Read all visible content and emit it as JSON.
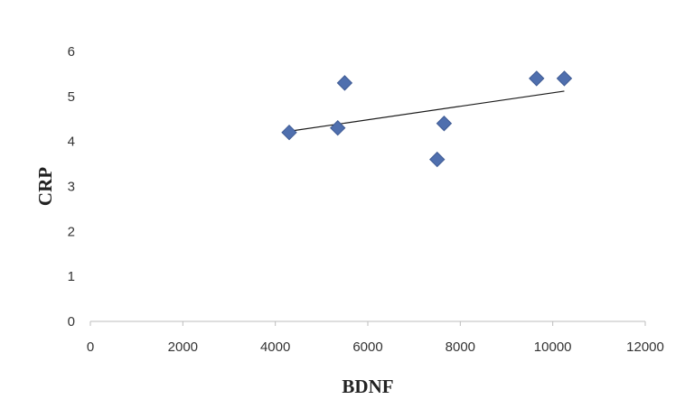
{
  "chart_data": {
    "type": "scatter",
    "title": "",
    "xlabel": "BDNF",
    "ylabel": "CRP",
    "xlim": [
      0,
      12000
    ],
    "ylim": [
      0,
      6
    ],
    "x_ticks": [
      "0",
      "2000",
      "4000",
      "6000",
      "8000",
      "10000",
      "12000"
    ],
    "y_ticks": [
      "0",
      "1",
      "2",
      "3",
      "4",
      "5",
      "6"
    ],
    "grid": false,
    "legend": "none",
    "marker": "diamond",
    "marker_color": "#4f6fae",
    "points": [
      {
        "x": 4300,
        "y": 4.2
      },
      {
        "x": 5350,
        "y": 4.3
      },
      {
        "x": 5500,
        "y": 5.3
      },
      {
        "x": 7500,
        "y": 3.6
      },
      {
        "x": 7650,
        "y": 4.4
      },
      {
        "x": 9650,
        "y": 5.4
      },
      {
        "x": 10250,
        "y": 5.4
      }
    ],
    "trendline": {
      "type": "linear",
      "x_range": [
        4300,
        10250
      ]
    }
  }
}
